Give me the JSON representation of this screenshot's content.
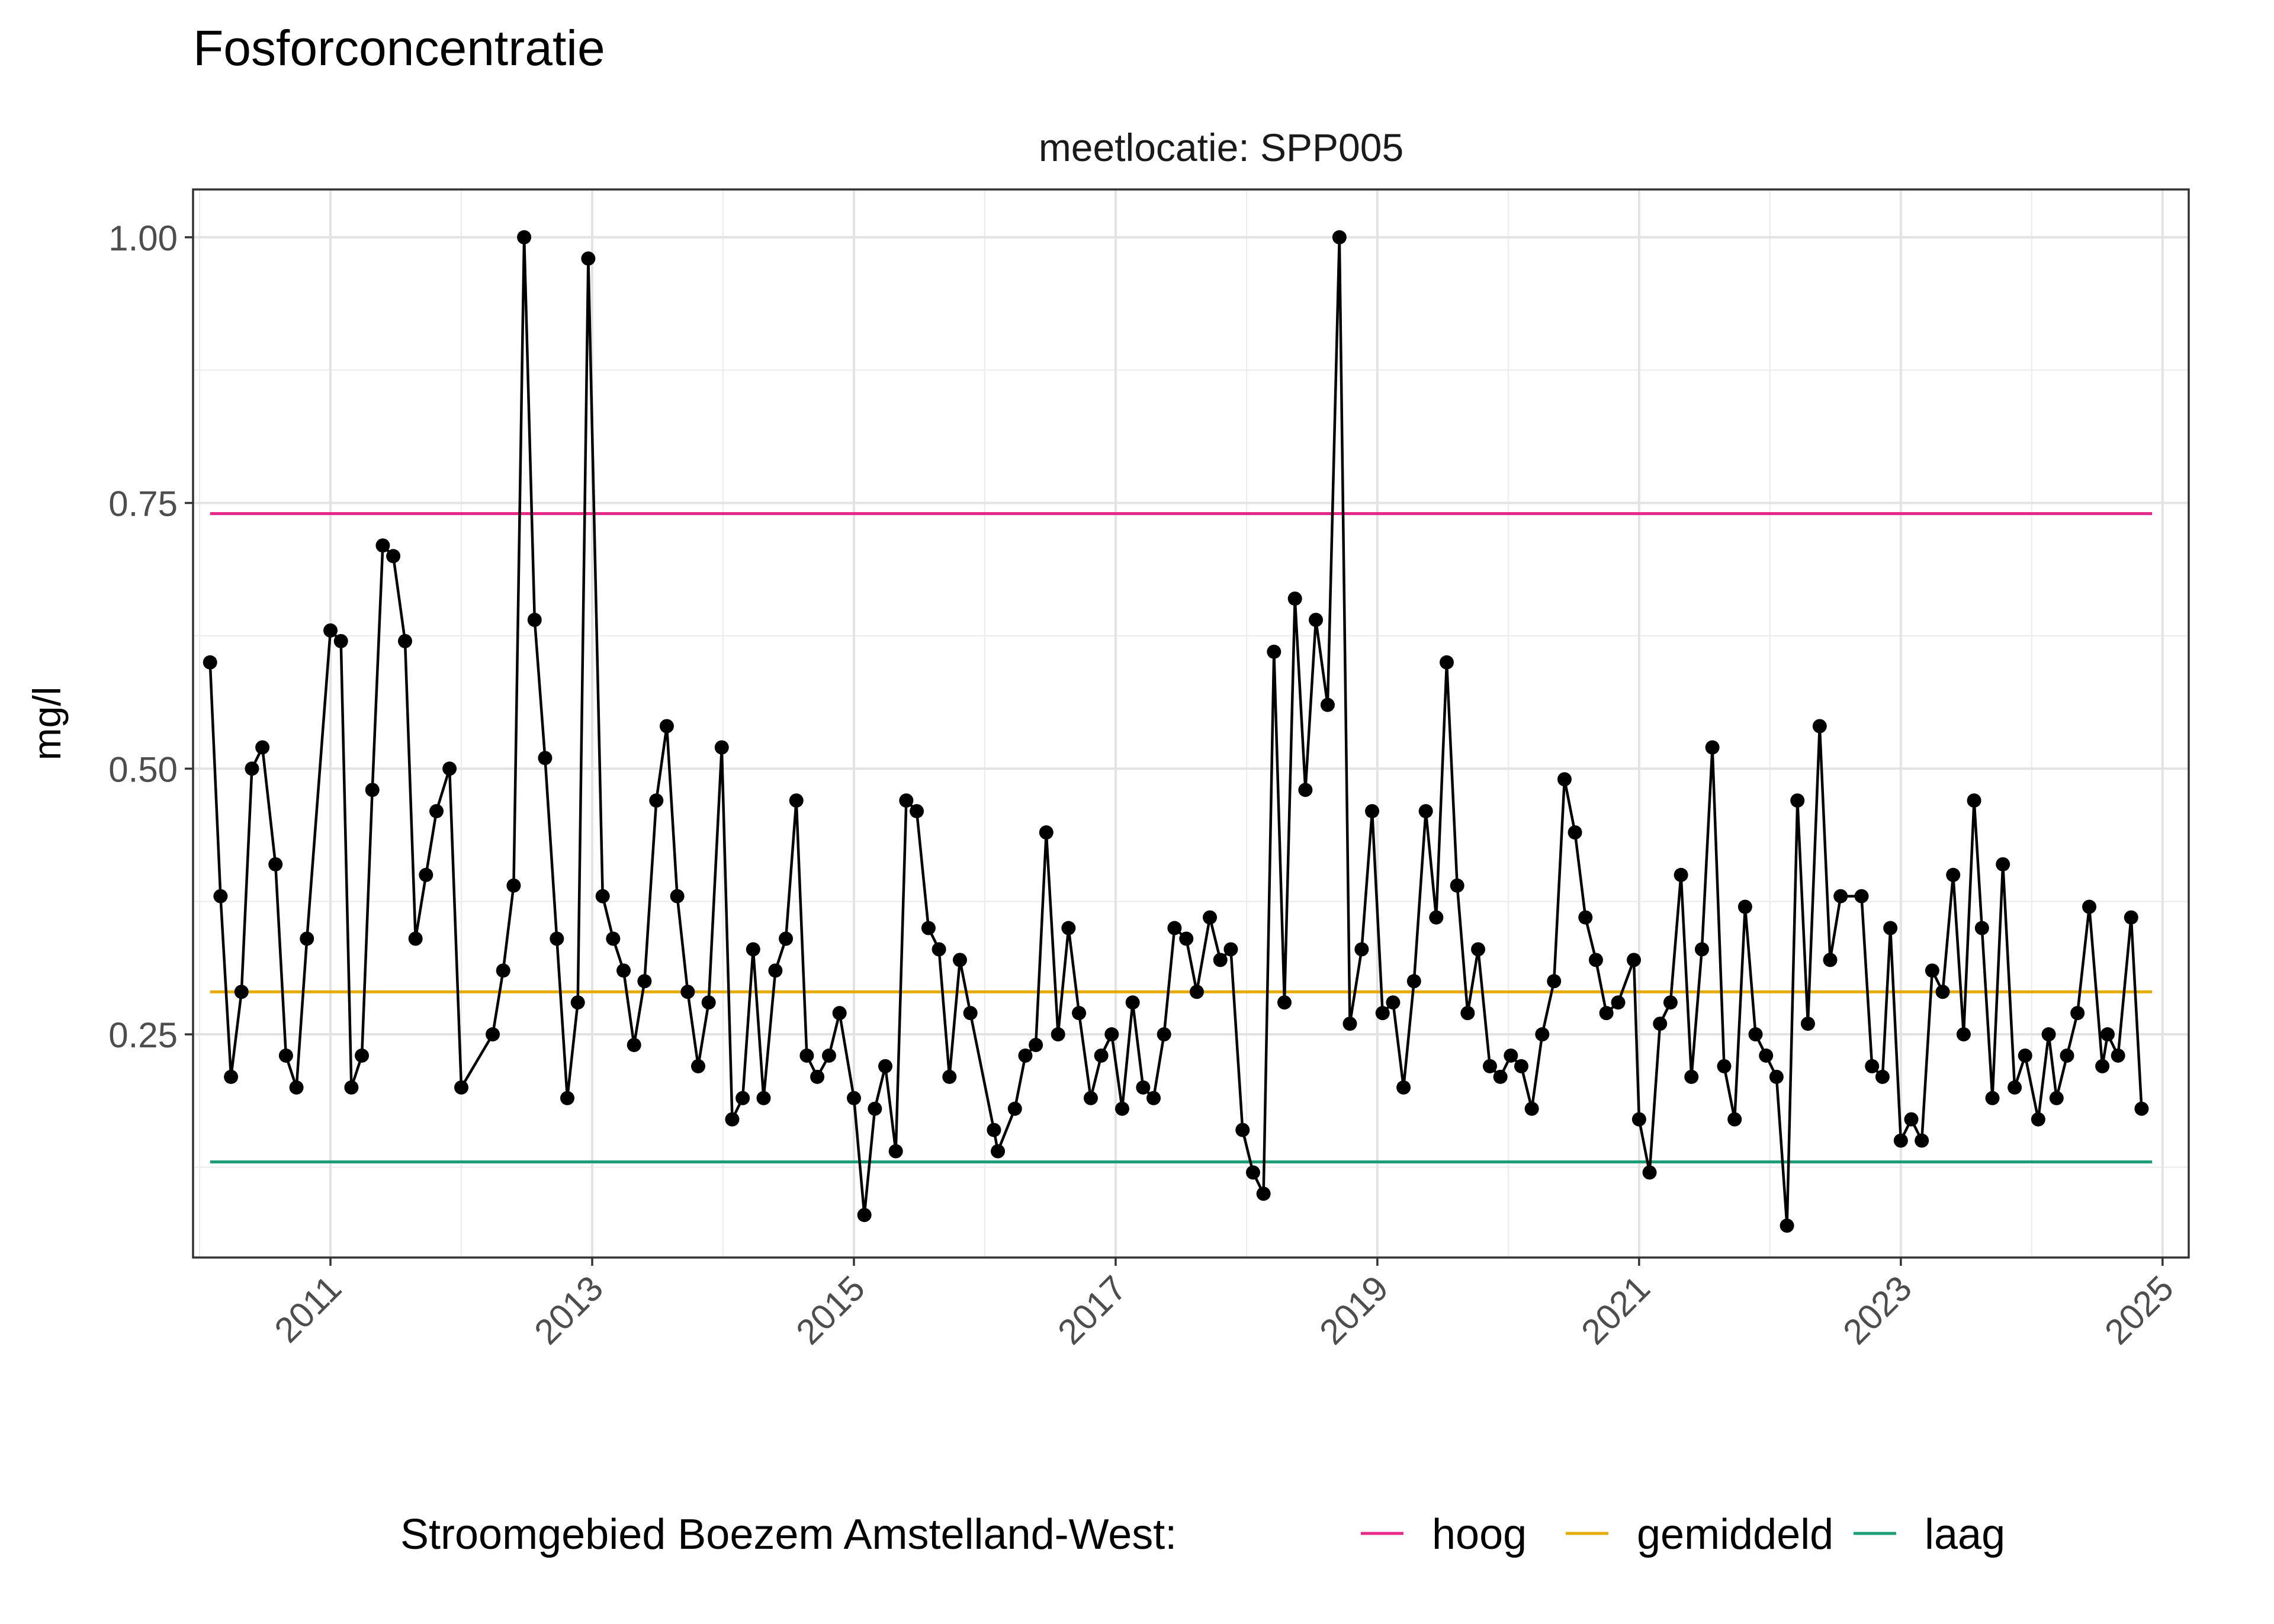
{
  "chart_data": {
    "type": "line",
    "title": "Fosforconcentratie",
    "facet_label": "meetlocatie: SPP005",
    "xlabel": "",
    "ylabel": "mg/l",
    "xlim": [
      2009.95,
      2025.2
    ],
    "ylim": [
      0.04,
      1.045
    ],
    "x_ticks": [
      2011,
      2013,
      2015,
      2017,
      2019,
      2021,
      2023,
      2025
    ],
    "y_ticks": [
      0.25,
      0.5,
      0.75,
      1.0
    ],
    "y_tick_labels": [
      "0.25",
      "0.50",
      "0.75",
      "1.00"
    ],
    "grid": true,
    "legend": {
      "position": "bottom",
      "title": "Stroomgebied Boezem Amstelland-West:",
      "entries": [
        {
          "label": "hoog",
          "color": "#E7298A"
        },
        {
          "label": "gemiddeld",
          "color": "#E6AB02"
        },
        {
          "label": "laag",
          "color": "#1B9E77"
        }
      ]
    },
    "reference_lines": [
      {
        "name": "hoog",
        "y": 0.74,
        "x_start": 2010.08,
        "x_end": 2024.92,
        "color": "#E7298A"
      },
      {
        "name": "gemiddeld",
        "y": 0.29,
        "x_start": 2010.08,
        "x_end": 2024.92,
        "color": "#E6AB02"
      },
      {
        "name": "laag",
        "y": 0.13,
        "x_start": 2010.08,
        "x_end": 2024.92,
        "color": "#1B9E77"
      }
    ],
    "series": [
      {
        "color": "#000000",
        "points": [
          [
            2010.08,
            0.6
          ],
          [
            2010.16,
            0.38
          ],
          [
            2010.24,
            0.21
          ],
          [
            2010.32,
            0.29
          ],
          [
            2010.4,
            0.5
          ],
          [
            2010.48,
            0.52
          ],
          [
            2010.58,
            0.41
          ],
          [
            2010.66,
            0.23
          ],
          [
            2010.74,
            0.2
          ],
          [
            2010.82,
            0.34
          ],
          [
            2011.0,
            0.63
          ],
          [
            2011.08,
            0.62
          ],
          [
            2011.16,
            0.2
          ],
          [
            2011.24,
            0.23
          ],
          [
            2011.32,
            0.48
          ],
          [
            2011.4,
            0.71
          ],
          [
            2011.48,
            0.7
          ],
          [
            2011.57,
            0.62
          ],
          [
            2011.65,
            0.34
          ],
          [
            2011.73,
            0.4
          ],
          [
            2011.81,
            0.46
          ],
          [
            2011.91,
            0.5
          ],
          [
            2012.0,
            0.2
          ],
          [
            2012.24,
            0.25
          ],
          [
            2012.32,
            0.31
          ],
          [
            2012.4,
            0.39
          ],
          [
            2012.48,
            1.0
          ],
          [
            2012.56,
            0.64
          ],
          [
            2012.64,
            0.51
          ],
          [
            2012.73,
            0.34
          ],
          [
            2012.81,
            0.19
          ],
          [
            2012.89,
            0.28
          ],
          [
            2012.97,
            0.98
          ],
          [
            2013.08,
            0.38
          ],
          [
            2013.16,
            0.34
          ],
          [
            2013.24,
            0.31
          ],
          [
            2013.32,
            0.24
          ],
          [
            2013.4,
            0.3
          ],
          [
            2013.49,
            0.47
          ],
          [
            2013.57,
            0.54
          ],
          [
            2013.65,
            0.38
          ],
          [
            2013.73,
            0.29
          ],
          [
            2013.81,
            0.22
          ],
          [
            2013.89,
            0.28
          ],
          [
            2013.99,
            0.52
          ],
          [
            2014.07,
            0.17
          ],
          [
            2014.15,
            0.19
          ],
          [
            2014.23,
            0.33
          ],
          [
            2014.31,
            0.19
          ],
          [
            2014.4,
            0.31
          ],
          [
            2014.48,
            0.34
          ],
          [
            2014.56,
            0.47
          ],
          [
            2014.64,
            0.23
          ],
          [
            2014.72,
            0.21
          ],
          [
            2014.81,
            0.23
          ],
          [
            2014.89,
            0.27
          ],
          [
            2015.0,
            0.19
          ],
          [
            2015.08,
            0.08
          ],
          [
            2015.16,
            0.18
          ],
          [
            2015.24,
            0.22
          ],
          [
            2015.32,
            0.14
          ],
          [
            2015.4,
            0.47
          ],
          [
            2015.48,
            0.46
          ],
          [
            2015.57,
            0.35
          ],
          [
            2015.65,
            0.33
          ],
          [
            2015.73,
            0.21
          ],
          [
            2015.81,
            0.32
          ],
          [
            2015.89,
            0.27
          ],
          [
            2016.07,
            0.16
          ],
          [
            2016.1,
            0.14
          ],
          [
            2016.23,
            0.18
          ],
          [
            2016.31,
            0.23
          ],
          [
            2016.39,
            0.24
          ],
          [
            2016.47,
            0.44
          ],
          [
            2016.56,
            0.25
          ],
          [
            2016.64,
            0.35
          ],
          [
            2016.72,
            0.27
          ],
          [
            2016.81,
            0.19
          ],
          [
            2016.89,
            0.23
          ],
          [
            2016.97,
            0.25
          ],
          [
            2017.05,
            0.18
          ],
          [
            2017.13,
            0.28
          ],
          [
            2017.21,
            0.2
          ],
          [
            2017.29,
            0.19
          ],
          [
            2017.37,
            0.25
          ],
          [
            2017.45,
            0.35
          ],
          [
            2017.54,
            0.34
          ],
          [
            2017.62,
            0.29
          ],
          [
            2017.72,
            0.36
          ],
          [
            2017.8,
            0.32
          ],
          [
            2017.88,
            0.33
          ],
          [
            2017.97,
            0.16
          ],
          [
            2018.05,
            0.12
          ],
          [
            2018.13,
            0.1
          ],
          [
            2018.21,
            0.61
          ],
          [
            2018.29,
            0.28
          ],
          [
            2018.37,
            0.66
          ],
          [
            2018.45,
            0.48
          ],
          [
            2018.53,
            0.64
          ],
          [
            2018.62,
            0.56
          ],
          [
            2018.71,
            1.0
          ],
          [
            2018.79,
            0.26
          ],
          [
            2018.88,
            0.33
          ],
          [
            2018.96,
            0.46
          ],
          [
            2019.04,
            0.27
          ],
          [
            2019.12,
            0.28
          ],
          [
            2019.2,
            0.2
          ],
          [
            2019.28,
            0.3
          ],
          [
            2019.37,
            0.46
          ],
          [
            2019.45,
            0.36
          ],
          [
            2019.53,
            0.6
          ],
          [
            2019.61,
            0.39
          ],
          [
            2019.69,
            0.27
          ],
          [
            2019.77,
            0.33
          ],
          [
            2019.86,
            0.22
          ],
          [
            2019.94,
            0.21
          ],
          [
            2020.02,
            0.23
          ],
          [
            2020.1,
            0.22
          ],
          [
            2020.18,
            0.18
          ],
          [
            2020.26,
            0.25
          ],
          [
            2020.35,
            0.3
          ],
          [
            2020.43,
            0.49
          ],
          [
            2020.51,
            0.44
          ],
          [
            2020.59,
            0.36
          ],
          [
            2020.67,
            0.32
          ],
          [
            2020.75,
            0.27
          ],
          [
            2020.84,
            0.28
          ],
          [
            2020.96,
            0.32
          ],
          [
            2021.0,
            0.17
          ],
          [
            2021.08,
            0.12
          ],
          [
            2021.16,
            0.26
          ],
          [
            2021.24,
            0.28
          ],
          [
            2021.32,
            0.4
          ],
          [
            2021.4,
            0.21
          ],
          [
            2021.48,
            0.33
          ],
          [
            2021.56,
            0.52
          ],
          [
            2021.65,
            0.22
          ],
          [
            2021.73,
            0.17
          ],
          [
            2021.81,
            0.37
          ],
          [
            2021.89,
            0.25
          ],
          [
            2021.97,
            0.23
          ],
          [
            2022.05,
            0.21
          ],
          [
            2022.13,
            0.07
          ],
          [
            2022.21,
            0.47
          ],
          [
            2022.29,
            0.26
          ],
          [
            2022.38,
            0.54
          ],
          [
            2022.46,
            0.32
          ],
          [
            2022.54,
            0.38
          ],
          [
            2022.7,
            0.38
          ],
          [
            2022.78,
            0.22
          ],
          [
            2022.86,
            0.21
          ],
          [
            2022.92,
            0.35
          ],
          [
            2023.0,
            0.15
          ],
          [
            2023.08,
            0.17
          ],
          [
            2023.16,
            0.15
          ],
          [
            2023.24,
            0.31
          ],
          [
            2023.32,
            0.29
          ],
          [
            2023.4,
            0.4
          ],
          [
            2023.48,
            0.25
          ],
          [
            2023.56,
            0.47
          ],
          [
            2023.62,
            0.35
          ],
          [
            2023.7,
            0.19
          ],
          [
            2023.78,
            0.41
          ],
          [
            2023.87,
            0.2
          ],
          [
            2023.95,
            0.23
          ],
          [
            2024.05,
            0.17
          ],
          [
            2024.13,
            0.25
          ],
          [
            2024.19,
            0.19
          ],
          [
            2024.27,
            0.23
          ],
          [
            2024.35,
            0.27
          ],
          [
            2024.44,
            0.37
          ],
          [
            2024.54,
            0.22
          ],
          [
            2024.58,
            0.25
          ],
          [
            2024.66,
            0.23
          ],
          [
            2024.76,
            0.36
          ],
          [
            2024.84,
            0.18
          ]
        ]
      }
    ]
  }
}
